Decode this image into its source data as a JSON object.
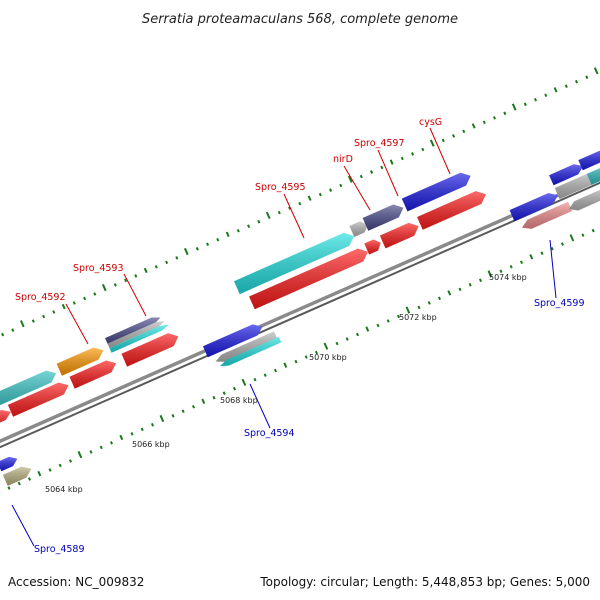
{
  "title": "Serratia proteamaculans 568, complete genome",
  "footer": {
    "accession": "Accession: NC_009832",
    "summary": "Topology: circular; Length: 5,448,853 bp; Genes: 5,000"
  },
  "ticks": [
    "5064 kbp",
    "5066 kbp",
    "5068 kbp",
    "5070 kbp",
    "5072 kbp",
    "5074 kbp"
  ],
  "gene_labels": {
    "spro_4592": "Spro_4592",
    "spro_4593": "Spro_4593",
    "spro_4595": "Spro_4595",
    "nird": "nirD",
    "spro_4597": "Spro_4597",
    "cysg": "cysG",
    "spro_4594": "Spro_4594",
    "spro_4599": "Spro_4599",
    "spro_4589": "Spro_4589"
  },
  "colors": {
    "forward_label": "#cc0000",
    "reverse_label": "#0000bb",
    "red": "#ff1a1a",
    "blue": "#1a1ae6",
    "cyan": "#22e0e0",
    "teal": "#2fc0c0",
    "orange": "#ff9900",
    "gray": "#b5b5b5",
    "slate": "#4a4a8c",
    "pink": "#f08c8c",
    "khaki": "#b8b080",
    "backbone": "#7a7a7a",
    "tick": "#1a7a1a"
  }
}
